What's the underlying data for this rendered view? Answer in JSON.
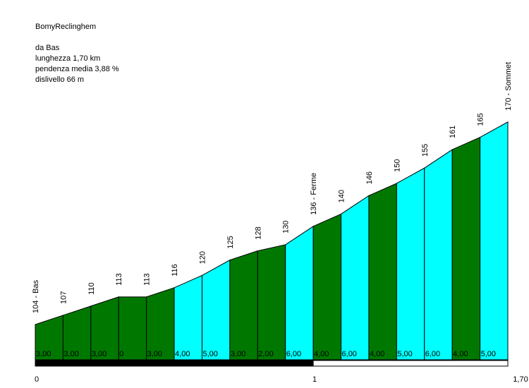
{
  "header": {
    "title": "BomyReclinghem",
    "from": "da Bas",
    "length": "lunghezza 1,70 km",
    "avg_gradient": "pendenza media 3,88 %",
    "elevation_gain": "dislivello 66 m"
  },
  "colors": {
    "dark_segment": "#007800",
    "light_segment": "#00ffff",
    "axis_bar_dark": "#000000",
    "axis_bar_light": "#ffffff"
  },
  "chart_data": {
    "type": "area",
    "title": "BomyReclinghem",
    "x_unit": "km",
    "x_range": [
      0,
      1.7
    ],
    "y_range": [
      90,
      175
    ],
    "x_tick_labels": [
      {
        "x": 0,
        "label": "0"
      },
      {
        "x": 1,
        "label": "1"
      },
      {
        "x": 1.7,
        "label": "1,70"
      }
    ],
    "points": [
      {
        "x": 0.0,
        "elevation": 104,
        "label": "104 - Bas"
      },
      {
        "x": 0.1,
        "elevation": 107,
        "label": "107"
      },
      {
        "x": 0.2,
        "elevation": 110,
        "label": "110"
      },
      {
        "x": 0.3,
        "elevation": 113,
        "label": "113"
      },
      {
        "x": 0.4,
        "elevation": 113,
        "label": "113"
      },
      {
        "x": 0.5,
        "elevation": 116,
        "label": "116"
      },
      {
        "x": 0.6,
        "elevation": 120,
        "label": "120"
      },
      {
        "x": 0.7,
        "elevation": 125,
        "label": "125"
      },
      {
        "x": 0.8,
        "elevation": 128,
        "label": "128"
      },
      {
        "x": 0.9,
        "elevation": 130,
        "label": "130"
      },
      {
        "x": 1.0,
        "elevation": 136,
        "label": "136 - Ferme"
      },
      {
        "x": 1.1,
        "elevation": 140,
        "label": "140"
      },
      {
        "x": 1.2,
        "elevation": 146,
        "label": "146"
      },
      {
        "x": 1.3,
        "elevation": 150,
        "label": "150"
      },
      {
        "x": 1.4,
        "elevation": 155,
        "label": "155"
      },
      {
        "x": 1.5,
        "elevation": 161,
        "label": "161"
      },
      {
        "x": 1.6,
        "elevation": 165,
        "label": "165"
      },
      {
        "x": 1.7,
        "elevation": 170,
        "label": "170 - Sommet"
      }
    ],
    "segments": [
      {
        "gradient_label": "3,00",
        "shade": "dark"
      },
      {
        "gradient_label": "3,00",
        "shade": "dark"
      },
      {
        "gradient_label": "3,00",
        "shade": "dark"
      },
      {
        "gradient_label": "0",
        "shade": "dark"
      },
      {
        "gradient_label": "3,00",
        "shade": "dark"
      },
      {
        "gradient_label": "4,00",
        "shade": "light"
      },
      {
        "gradient_label": "5,00",
        "shade": "light"
      },
      {
        "gradient_label": "3,00",
        "shade": "dark"
      },
      {
        "gradient_label": "2,00",
        "shade": "dark"
      },
      {
        "gradient_label": "6,00",
        "shade": "light"
      },
      {
        "gradient_label": "4,00",
        "shade": "dark"
      },
      {
        "gradient_label": "6,00",
        "shade": "light"
      },
      {
        "gradient_label": "4,00",
        "shade": "dark"
      },
      {
        "gradient_label": "5,00",
        "shade": "light"
      },
      {
        "gradient_label": "6,00",
        "shade": "light"
      },
      {
        "gradient_label": "4,00",
        "shade": "dark"
      },
      {
        "gradient_label": "5,00",
        "shade": "light"
      }
    ],
    "km_bar": [
      {
        "from": 0,
        "to": 1,
        "shade": "dark"
      },
      {
        "from": 1,
        "to": 1.7,
        "shade": "light"
      }
    ]
  }
}
